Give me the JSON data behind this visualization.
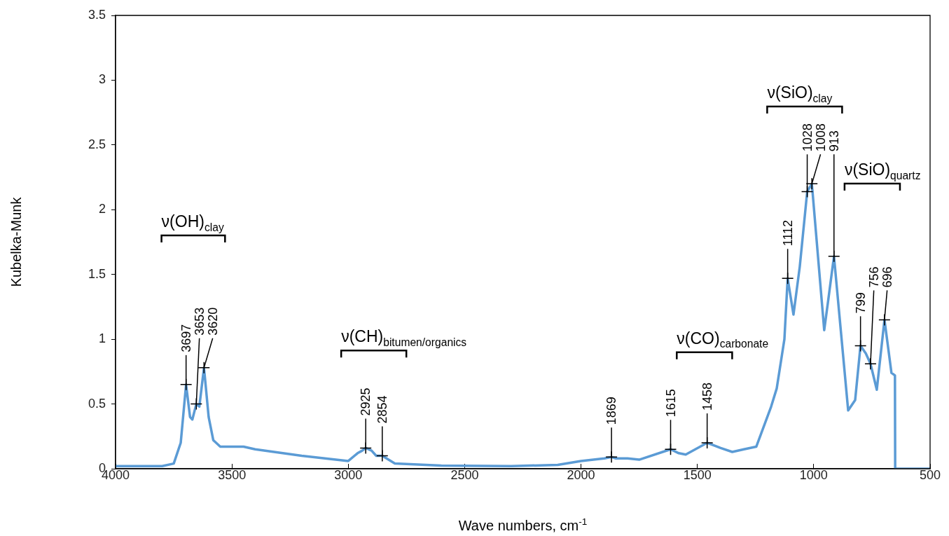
{
  "chart_data": {
    "type": "line",
    "xlabel": "Wave numbers, cm$^{-1}$",
    "ylabel": "Kubelka-Munk",
    "xlim": [
      4000,
      500
    ],
    "xticks": [
      4000,
      3500,
      3000,
      2500,
      2000,
      1500,
      1000,
      500
    ],
    "ylim": [
      0,
      3.5
    ],
    "yticks": [
      0,
      0.5,
      1,
      1.5,
      2,
      2.5,
      3,
      3.5
    ],
    "grid": false,
    "legend": false,
    "marker": "none",
    "line_style": "solid",
    "series": [
      {
        "color": "#5b9bd5",
        "x": [
          4000,
          3800,
          3750,
          3720,
          3697,
          3680,
          3670,
          3653,
          3640,
          3620,
          3600,
          3580,
          3550,
          3450,
          3400,
          3200,
          3000,
          2960,
          2940,
          2925,
          2900,
          2880,
          2854,
          2800,
          2600,
          2300,
          2100,
          2000,
          1900,
          1869,
          1850,
          1800,
          1750,
          1615,
          1580,
          1550,
          1458,
          1400,
          1350,
          1300,
          1247,
          1183,
          1159,
          1126,
          1112,
          1087,
          1060,
          1028,
          1008,
          955,
          937,
          913,
          852,
          822,
          799,
          776,
          756,
          729,
          696,
          666,
          651,
          650,
          600,
          500
        ],
        "values": [
          0.02,
          0.02,
          0.04,
          0.2,
          0.65,
          0.4,
          0.38,
          0.5,
          0.48,
          0.78,
          0.4,
          0.22,
          0.17,
          0.17,
          0.15,
          0.1,
          0.06,
          0.12,
          0.14,
          0.16,
          0.14,
          0.1,
          0.1,
          0.04,
          0.025,
          0.02,
          0.03,
          0.06,
          0.08,
          0.09,
          0.08,
          0.08,
          0.07,
          0.15,
          0.12,
          0.11,
          0.2,
          0.16,
          0.13,
          0.15,
          0.17,
          0.48,
          0.62,
          1.0,
          1.47,
          1.19,
          1.56,
          2.14,
          2.2,
          1.07,
          1.31,
          1.64,
          0.45,
          0.53,
          0.95,
          0.89,
          0.81,
          0.61,
          1.15,
          0.74,
          0.72,
          0,
          0,
          0
        ]
      }
    ],
    "annotations": [
      {
        "text": "3697",
        "x": 3697,
        "y": 0.65
      },
      {
        "text": "3653",
        "x": 3653,
        "y": 0.5
      },
      {
        "text": "3620",
        "x": 3620,
        "y": 0.78
      },
      {
        "text": "2925",
        "x": 2925,
        "y": 0.16
      },
      {
        "text": "2854",
        "x": 2854,
        "y": 0.1
      },
      {
        "text": "1869",
        "x": 1869,
        "y": 0.09
      },
      {
        "text": "1615",
        "x": 1615,
        "y": 0.15
      },
      {
        "text": "1458",
        "x": 1458,
        "y": 0.2
      },
      {
        "text": "1112",
        "x": 1112,
        "y": 1.47
      },
      {
        "text": "1028",
        "x": 1028,
        "y": 2.14
      },
      {
        "text": "1008",
        "x": 1008,
        "y": 2.2
      },
      {
        "text": "913",
        "x": 913,
        "y": 1.64
      },
      {
        "text": "799",
        "x": 799,
        "y": 0.95
      },
      {
        "text": "756",
        "x": 756,
        "y": 0.81
      },
      {
        "text": "696",
        "x": 696,
        "y": 1.15
      },
      "ν(OH)$_{clay}$",
      "ν(CH)$_{bitumen/organics}$",
      "ν(CO)$_{carbonate}$",
      "ν(SiO)$_{clay}$",
      "ν(SiO)$_{quartz}$"
    ]
  }
}
